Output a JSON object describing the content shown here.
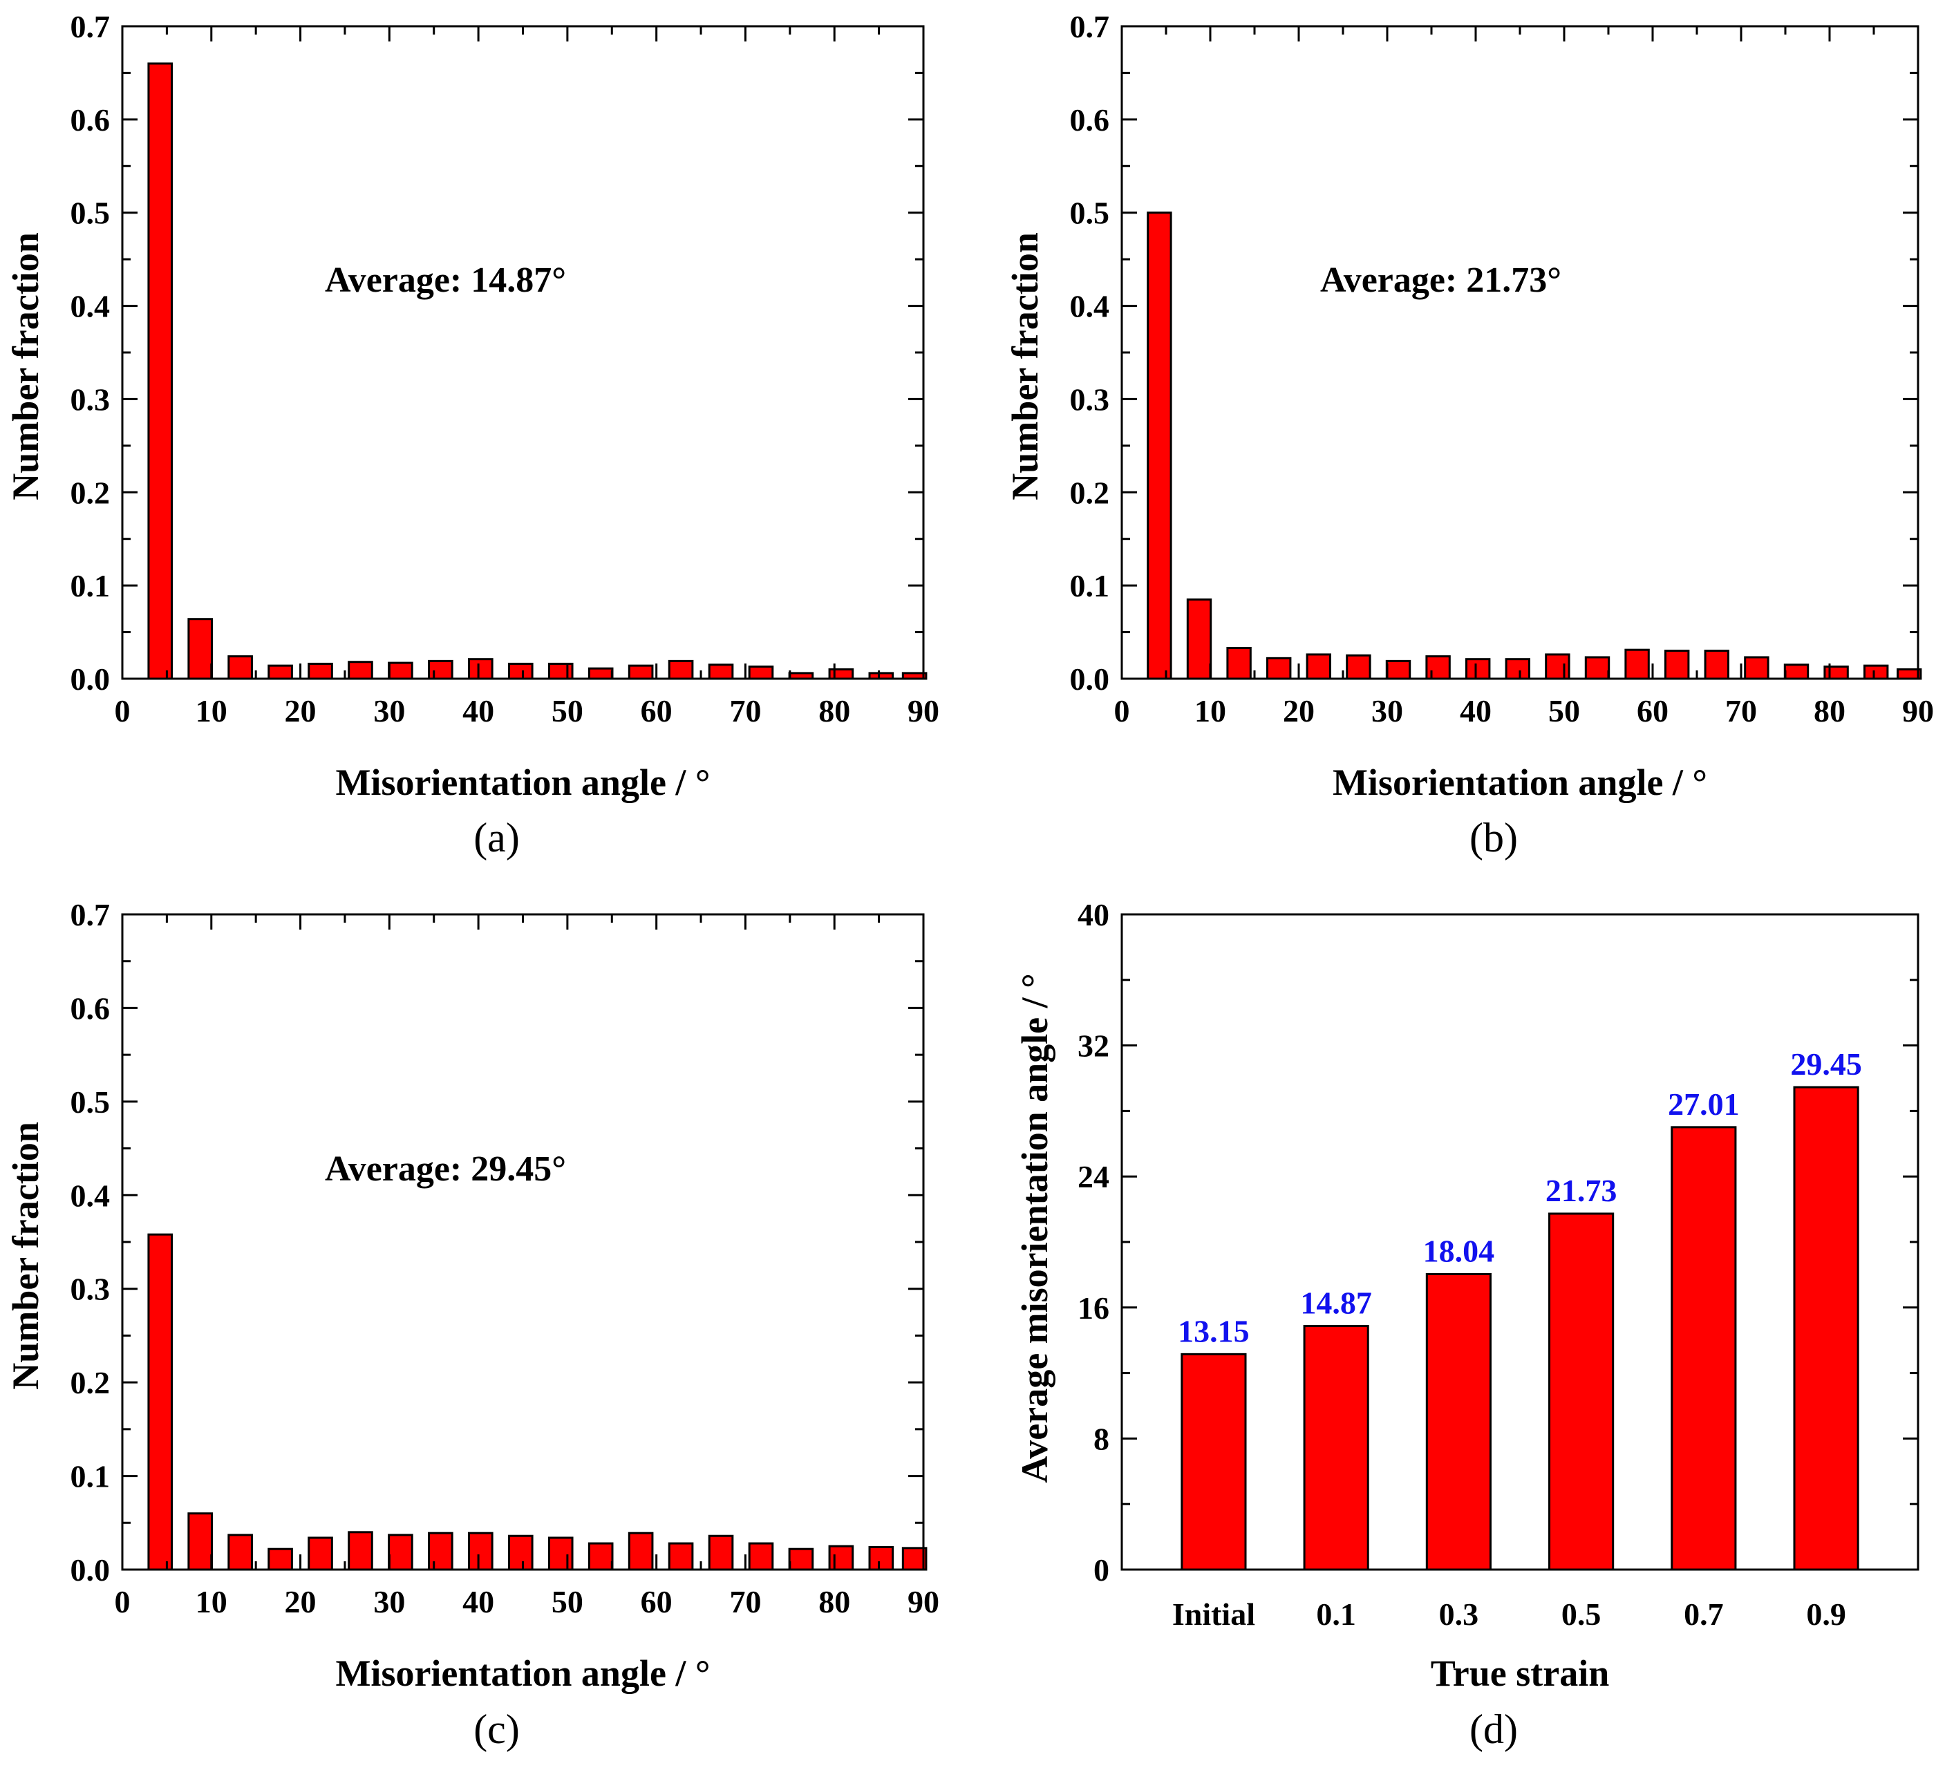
{
  "chart_data": [
    {
      "id": "a",
      "type": "bar",
      "panel_label": "(a)",
      "annotation": "Average: 14.87°",
      "xlabel": "Misorientation angle / °",
      "ylabel": "Number fraction",
      "xlim": [
        0,
        90
      ],
      "ylim": [
        0,
        0.7
      ],
      "xticks": [
        "0",
        "10",
        "20",
        "30",
        "40",
        "50",
        "60",
        "70",
        "80",
        "90"
      ],
      "yticks": [
        "0.0",
        "0.1",
        "0.2",
        "0.3",
        "0.4",
        "0.5",
        "0.6",
        "0.7"
      ],
      "bin_centers": [
        4.25,
        8.75,
        13.25,
        17.75,
        22.25,
        26.75,
        31.25,
        35.75,
        40.25,
        44.75,
        49.25,
        53.75,
        58.25,
        62.75,
        67.25,
        71.75,
        76.25,
        80.75,
        85.25,
        89.0
      ],
      "values": [
        0.66,
        0.064,
        0.024,
        0.014,
        0.016,
        0.018,
        0.017,
        0.019,
        0.021,
        0.016,
        0.016,
        0.011,
        0.014,
        0.019,
        0.015,
        0.013,
        0.006,
        0.01,
        0.006,
        0.006
      ]
    },
    {
      "id": "b",
      "type": "bar",
      "panel_label": "(b)",
      "annotation": "Average: 21.73°",
      "xlabel": "Misorientation angle / °",
      "ylabel": "Number fraction",
      "xlim": [
        0,
        90
      ],
      "ylim": [
        0,
        0.7
      ],
      "xticks": [
        "0",
        "10",
        "20",
        "30",
        "40",
        "50",
        "60",
        "70",
        "80",
        "90"
      ],
      "yticks": [
        "0.0",
        "0.1",
        "0.2",
        "0.3",
        "0.4",
        "0.5",
        "0.6",
        "0.7"
      ],
      "bin_centers": [
        4.25,
        8.75,
        13.25,
        17.75,
        22.25,
        26.75,
        31.25,
        35.75,
        40.25,
        44.75,
        49.25,
        53.75,
        58.25,
        62.75,
        67.25,
        71.75,
        76.25,
        80.75,
        85.25,
        89.0
      ],
      "values": [
        0.5,
        0.085,
        0.033,
        0.022,
        0.026,
        0.025,
        0.019,
        0.024,
        0.021,
        0.021,
        0.026,
        0.023,
        0.031,
        0.03,
        0.03,
        0.023,
        0.015,
        0.013,
        0.014,
        0.01
      ]
    },
    {
      "id": "c",
      "type": "bar",
      "panel_label": "(c)",
      "annotation": "Average: 29.45°",
      "xlabel": "Misorientation angle / °",
      "ylabel": "Number fraction",
      "xlim": [
        0,
        90
      ],
      "ylim": [
        0,
        0.7
      ],
      "xticks": [
        "0",
        "10",
        "20",
        "30",
        "40",
        "50",
        "60",
        "70",
        "80",
        "90"
      ],
      "yticks": [
        "0.0",
        "0.1",
        "0.2",
        "0.3",
        "0.4",
        "0.5",
        "0.6",
        "0.7"
      ],
      "bin_centers": [
        4.25,
        8.75,
        13.25,
        17.75,
        22.25,
        26.75,
        31.25,
        35.75,
        40.25,
        44.75,
        49.25,
        53.75,
        58.25,
        62.75,
        67.25,
        71.75,
        76.25,
        80.75,
        85.25,
        89.0
      ],
      "values": [
        0.358,
        0.06,
        0.037,
        0.022,
        0.034,
        0.04,
        0.037,
        0.039,
        0.039,
        0.036,
        0.034,
        0.028,
        0.039,
        0.028,
        0.036,
        0.028,
        0.022,
        0.025,
        0.024,
        0.023
      ]
    },
    {
      "id": "d",
      "type": "bar",
      "panel_label": "(d)",
      "xlabel": "True strain",
      "ylabel": "Average misorientation angle / °",
      "ylim": [
        0,
        40
      ],
      "yticks": [
        "0",
        "8",
        "16",
        "24",
        "32",
        "40"
      ],
      "categories": [
        "Initial",
        "0.1",
        "0.3",
        "0.5",
        "0.7",
        "0.9"
      ],
      "values": [
        13.15,
        14.87,
        18.04,
        21.73,
        27.01,
        29.45
      ],
      "data_labels": [
        "13.15",
        "14.87",
        "18.04",
        "21.73",
        "27.01",
        "29.45"
      ]
    }
  ]
}
